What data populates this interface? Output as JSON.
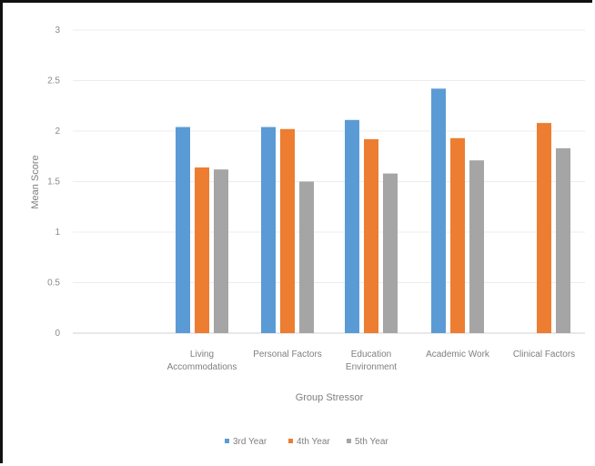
{
  "chart_data": {
    "type": "bar",
    "categories": [
      "Living Accommodations",
      "Personal Factors",
      "Education Environment",
      "Academic Work",
      "Clinical Factors"
    ],
    "category_lines": [
      [
        "Living",
        "Accommodations"
      ],
      [
        "Personal Factors"
      ],
      [
        "Education",
        "Environment"
      ],
      [
        "Academic Work"
      ],
      [
        "Clinical Factors"
      ]
    ],
    "series": [
      {
        "name": "3rd Year",
        "color": "#5b9bd5",
        "values": [
          2.04,
          2.04,
          2.11,
          2.42,
          null
        ]
      },
      {
        "name": "4th Year",
        "color": "#ed7d31",
        "values": [
          1.64,
          2.02,
          1.92,
          1.93,
          2.08
        ]
      },
      {
        "name": "5th Year",
        "color": "#a5a5a5",
        "values": [
          1.62,
          1.5,
          1.58,
          1.71,
          1.83
        ]
      }
    ],
    "xlabel": "Group Stressor",
    "ylabel": "Mean Score",
    "ylim": [
      0,
      3
    ],
    "yticks": [
      "0",
      "0.5",
      "1",
      "1.5",
      "2",
      "2.5",
      "3"
    ],
    "grid": true,
    "legend": "bottom"
  }
}
